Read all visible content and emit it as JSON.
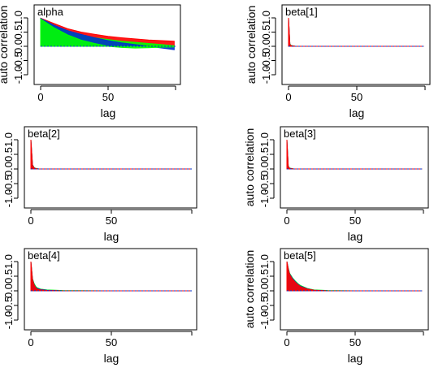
{
  "chart_data": [
    {
      "type": "area",
      "title": "alpha",
      "xlabel": "lag",
      "ylabel": "auto correlation",
      "xticks": [
        "0",
        "50"
      ],
      "yticks": [
        "-1.0",
        "-0.5",
        "0.0",
        "0.5",
        "1.0"
      ],
      "xlim": [
        0,
        100
      ],
      "ylim": [
        -1,
        1
      ],
      "series": [
        {
          "color": "#ff0000",
          "x": [
            0,
            10,
            20,
            30,
            40,
            50,
            60,
            70,
            80,
            90,
            99
          ],
          "values": [
            0.99,
            0.8,
            0.62,
            0.5,
            0.42,
            0.35,
            0.3,
            0.26,
            0.22,
            0.2,
            0.18
          ]
        },
        {
          "color": "#00ff00",
          "x": [
            0,
            10,
            20,
            30,
            40,
            50,
            60,
            70,
            80,
            90,
            99
          ],
          "values": [
            0.97,
            0.7,
            0.52,
            0.4,
            0.3,
            0.24,
            0.18,
            0.14,
            0.1,
            0.06,
            0.02
          ]
        },
        {
          "color": "#0033cc",
          "x": [
            0,
            10,
            20,
            30,
            40,
            50,
            60,
            70,
            80,
            90,
            99
          ],
          "values": [
            0.98,
            0.74,
            0.55,
            0.42,
            0.3,
            0.2,
            0.12,
            0.06,
            0.0,
            -0.06,
            -0.12
          ]
        },
        {
          "color": "#00ff00",
          "x": [
            0,
            10,
            20,
            30,
            40,
            50,
            60,
            70,
            80,
            90,
            99
          ],
          "values": [
            0.96,
            0.65,
            0.4,
            0.22,
            0.1,
            0.0,
            -0.04,
            -0.06,
            -0.05,
            -0.03,
            -0.02
          ]
        }
      ]
    },
    {
      "type": "area",
      "title": "beta[1]",
      "xlabel": "lag",
      "ylabel": "auto correlation",
      "xticks": [
        "0",
        "50"
      ],
      "yticks": [
        "-1.0",
        "-0.5",
        "0.0",
        "0.5",
        "1.0"
      ],
      "xlim": [
        0,
        100
      ],
      "ylim": [
        -1,
        1
      ],
      "series": [
        {
          "color": "#00ff00",
          "x": [
            0,
            1,
            2,
            5,
            20,
            50,
            99
          ],
          "values": [
            1.0,
            0.08,
            0.03,
            0.0,
            0.0,
            0.0,
            0.0
          ]
        },
        {
          "color": "#0033cc",
          "x": [
            0,
            1,
            2,
            5,
            20,
            50,
            99
          ],
          "values": [
            1.0,
            0.07,
            0.02,
            0.0,
            0.0,
            0.0,
            0.0
          ]
        },
        {
          "color": "#ff0000",
          "x": [
            0,
            1,
            2,
            5,
            20,
            50,
            99
          ],
          "values": [
            1.0,
            0.06,
            0.02,
            0.0,
            0.0,
            0.0,
            0.0
          ]
        }
      ]
    },
    {
      "type": "area",
      "title": "beta[2]",
      "xlabel": "lag",
      "ylabel": "auto correlation",
      "xticks": [
        "0",
        "50"
      ],
      "yticks": [
        "-1.0",
        "-0.5",
        "0.0",
        "0.5",
        "1.0"
      ],
      "xlim": [
        0,
        100
      ],
      "ylim": [
        -1,
        1
      ],
      "series": [
        {
          "color": "#00ff00",
          "x": [
            0,
            1,
            2,
            3,
            5,
            20,
            50,
            99
          ],
          "values": [
            1.0,
            0.15,
            0.05,
            0.02,
            0.0,
            0.0,
            0.0,
            0.0
          ]
        },
        {
          "color": "#0033cc",
          "x": [
            0,
            1,
            2,
            3,
            5,
            20,
            50,
            99
          ],
          "values": [
            1.0,
            0.14,
            0.04,
            0.01,
            0.0,
            0.0,
            0.0,
            0.0
          ]
        },
        {
          "color": "#ff0000",
          "x": [
            0,
            1,
            2,
            3,
            5,
            20,
            50,
            99
          ],
          "values": [
            1.0,
            0.12,
            0.04,
            0.01,
            0.0,
            0.0,
            0.0,
            0.0
          ]
        }
      ]
    },
    {
      "type": "area",
      "title": "beta[3]",
      "xlabel": "lag",
      "ylabel": "auto correlation",
      "xticks": [
        "0",
        "50"
      ],
      "yticks": [
        "-1.0",
        "-0.5",
        "0.0",
        "0.5",
        "1.0"
      ],
      "xlim": [
        0,
        100
      ],
      "ylim": [
        -1,
        1
      ],
      "series": [
        {
          "color": "#00ff00",
          "x": [
            0,
            1,
            2,
            5,
            20,
            50,
            99
          ],
          "values": [
            1.0,
            0.1,
            0.03,
            0.0,
            0.0,
            0.0,
            0.0
          ]
        },
        {
          "color": "#0033cc",
          "x": [
            0,
            1,
            2,
            5,
            20,
            50,
            99
          ],
          "values": [
            1.0,
            0.09,
            0.02,
            0.0,
            0.0,
            0.0,
            0.0
          ]
        },
        {
          "color": "#ff0000",
          "x": [
            0,
            1,
            2,
            5,
            20,
            50,
            99
          ],
          "values": [
            1.0,
            0.08,
            0.02,
            0.0,
            0.0,
            0.0,
            0.0
          ]
        }
      ]
    },
    {
      "type": "area",
      "title": "beta[4]",
      "xlabel": "lag",
      "ylabel": "auto correlation",
      "xticks": [
        "0",
        "50"
      ],
      "yticks": [
        "-1.0",
        "-0.5",
        "0.0",
        "0.5",
        "1.0"
      ],
      "xlim": [
        0,
        100
      ],
      "ylim": [
        -1,
        1
      ],
      "series": [
        {
          "color": "#00ff00",
          "x": [
            0,
            1,
            2,
            3,
            4,
            6,
            10,
            20,
            50,
            99
          ],
          "values": [
            1.0,
            0.42,
            0.25,
            0.15,
            0.1,
            0.06,
            0.03,
            0.01,
            0.0,
            0.0
          ]
        },
        {
          "color": "#0033cc",
          "x": [
            0,
            1,
            2,
            3,
            4,
            6,
            10,
            20,
            50,
            99
          ],
          "values": [
            1.0,
            0.4,
            0.22,
            0.12,
            0.08,
            0.05,
            0.02,
            0.0,
            0.0,
            0.0
          ]
        },
        {
          "color": "#ff0000",
          "x": [
            0,
            1,
            2,
            3,
            4,
            6,
            10,
            20,
            50,
            99
          ],
          "values": [
            1.0,
            0.38,
            0.2,
            0.1,
            0.06,
            0.03,
            0.01,
            0.0,
            0.0,
            0.0
          ]
        }
      ]
    },
    {
      "type": "area",
      "title": "beta[5]",
      "xlabel": "lag",
      "ylabel": "auto correlation",
      "xticks": [
        "0",
        "50"
      ],
      "yticks": [
        "-1.0",
        "-0.5",
        "0.0",
        "0.5",
        "1.0"
      ],
      "xlim": [
        0,
        100
      ],
      "ylim": [
        -1,
        1
      ],
      "series": [
        {
          "color": "#00ff00",
          "x": [
            0,
            1,
            2,
            4,
            6,
            8,
            10,
            15,
            20,
            30,
            50,
            99
          ],
          "values": [
            1.0,
            0.78,
            0.6,
            0.45,
            0.34,
            0.25,
            0.18,
            0.08,
            0.03,
            0.01,
            0.0,
            0.0
          ]
        },
        {
          "color": "#0033cc",
          "x": [
            0,
            1,
            2,
            4,
            6,
            8,
            10,
            15,
            20,
            30,
            50,
            99
          ],
          "values": [
            1.0,
            0.76,
            0.58,
            0.43,
            0.32,
            0.23,
            0.16,
            0.07,
            0.02,
            0.0,
            0.0,
            0.0
          ]
        },
        {
          "color": "#ff0000",
          "x": [
            0,
            1,
            2,
            4,
            6,
            8,
            10,
            15,
            20,
            30,
            50,
            99
          ],
          "values": [
            1.0,
            0.74,
            0.56,
            0.4,
            0.3,
            0.21,
            0.14,
            0.06,
            0.02,
            0.0,
            0.0,
            0.0
          ]
        }
      ]
    }
  ]
}
